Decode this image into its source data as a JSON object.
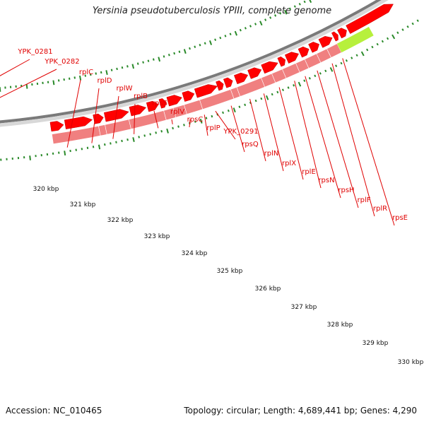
{
  "title": "Yersinia pseudotuberculosis YPIII, complete genome",
  "colors": {
    "gene_cds": "#ff0000",
    "gene_track": "#f08080",
    "gene_other": "#4b3c96",
    "gene_green": "#b7f03c",
    "tick": "#2a8a2a",
    "label": "#e00000",
    "backbone_light": "#d8d8d8",
    "backbone_dark": "#7a7a7a"
  },
  "gene_labels": [
    "YPK_0281",
    "YPK_0282",
    "rplC",
    "rplD",
    "rplW",
    "rplB",
    "rpsS",
    "rplV",
    "rpsC",
    "rplP",
    "YPK_0291",
    "rpsQ",
    "rplN",
    "rplX",
    "rplE",
    "rpsN",
    "rpsH",
    "rplF",
    "rplR",
    "rpsE"
  ],
  "scale_labels": [
    "320 kbp",
    "321 kbp",
    "322 kbp",
    "323 kbp",
    "324 kbp",
    "325 kbp",
    "326 kbp",
    "327 kbp",
    "328 kbp",
    "329 kbp",
    "330 kbp"
  ],
  "footer": {
    "accession": "Accession: NC_010465",
    "summary": "Topology: circular; Length: 4,689,441 bp; Genes: 4,290"
  }
}
